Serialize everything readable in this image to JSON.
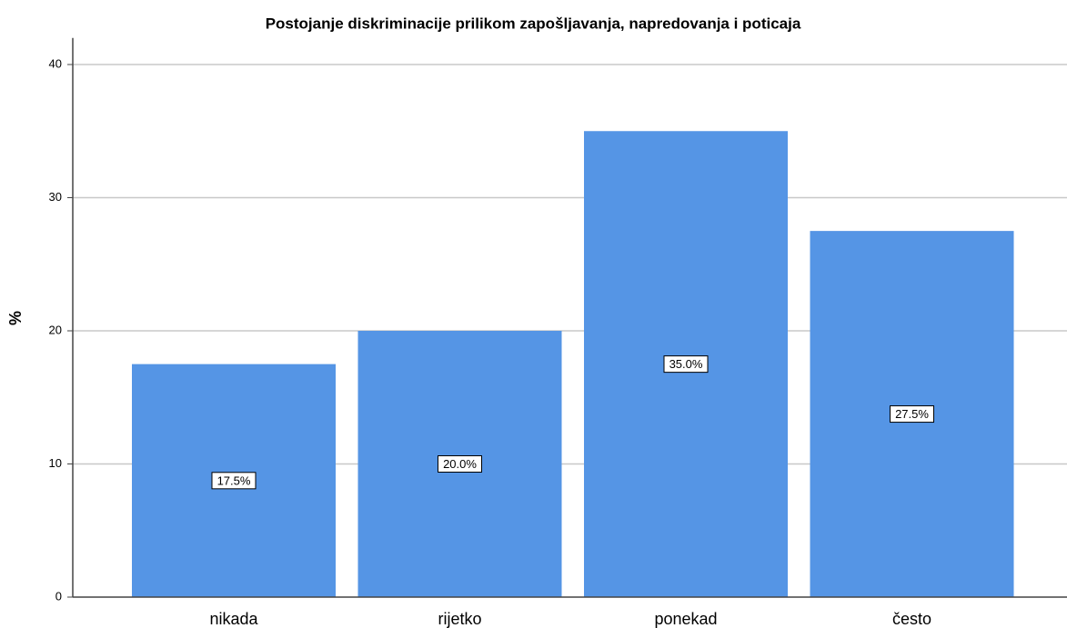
{
  "chart_data": {
    "type": "bar",
    "title": "Postojanje diskriminacije prilikom zapošljavanja, napredovanja i poticaja",
    "y_label": "%",
    "categories": [
      "nikada",
      "rijetko",
      "ponekad",
      "često"
    ],
    "values": [
      17.5,
      20.0,
      35.0,
      27.5
    ],
    "value_labels": [
      "17.5%",
      "20.0%",
      "35.0%",
      "27.5%"
    ],
    "color": "#5595e5",
    "ylim": [
      0,
      42
    ],
    "yticks": [
      0,
      10,
      20,
      30,
      40
    ],
    "grid": true
  }
}
